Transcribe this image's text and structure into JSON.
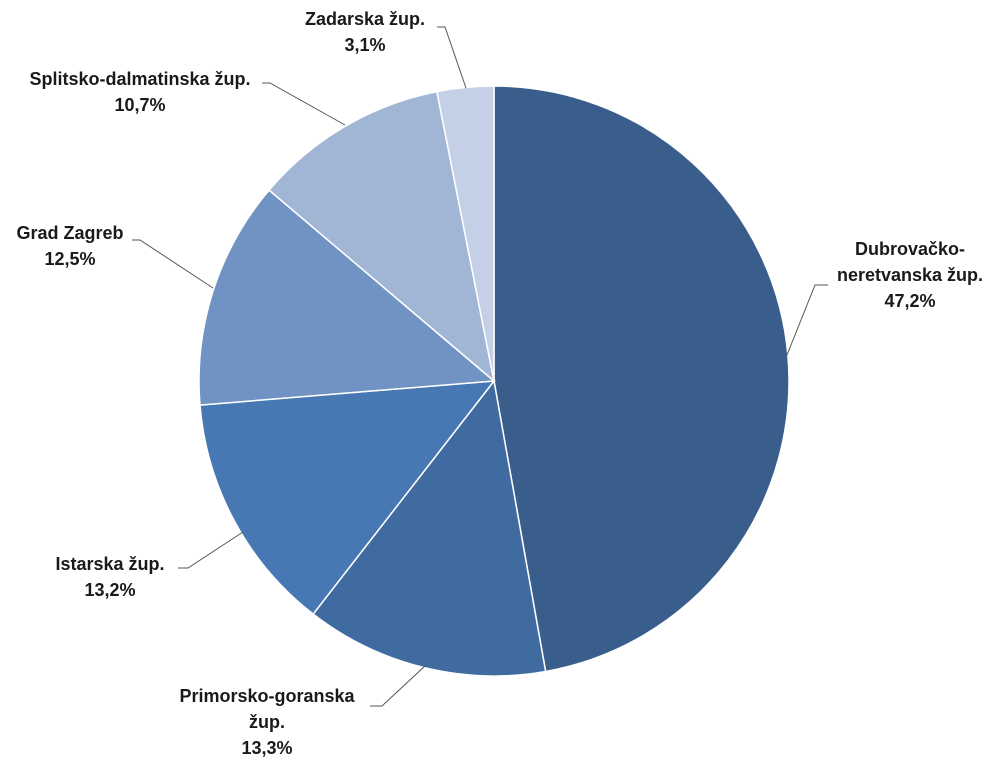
{
  "chart_data": {
    "type": "pie",
    "categories": [
      "Dubrovačko-neretvanska žup.",
      "Primorsko-goranska žup.",
      "Istarska žup.",
      "Grad Zagreb",
      "Splitsko-dalmatinska žup.",
      "Zadarska žup."
    ],
    "values": [
      47.2,
      13.3,
      13.2,
      12.5,
      10.7,
      3.1
    ],
    "value_labels": [
      "47,2%",
      "13,3%",
      "13,2%",
      "12,5%",
      "10,7%",
      "3,1%"
    ],
    "colors": [
      "#3a5e8c",
      "#3f6ba1",
      "#4778b3",
      "#7193c4",
      "#a1b5d5",
      "#c4d0e5"
    ]
  }
}
